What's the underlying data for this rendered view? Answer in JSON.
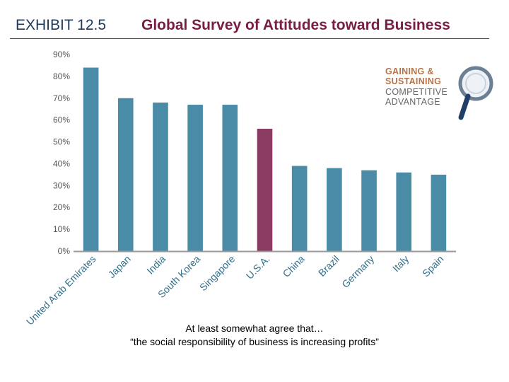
{
  "header": {
    "exhibit": "EXHIBIT 12.5",
    "title": "Global Survey of Attitudes toward Business"
  },
  "badge": {
    "line1": "GAINING &",
    "line2": "SUSTAINING",
    "line3": "COMPETITIVE",
    "line4": "ADVANTAGE",
    "icon": "magnifying-glass-icon"
  },
  "caption": {
    "line1": "At least somewhat agree that…",
    "line2": "“the social responsibility of business is increasing profits”"
  },
  "chart_data": {
    "type": "bar",
    "categories": [
      "United Arab Emirates",
      "Japan",
      "India",
      "South Korea",
      "Singapore",
      "U.S.A.",
      "China",
      "Brazil",
      "Germany",
      "Italy",
      "Spain"
    ],
    "values": [
      84,
      70,
      68,
      67,
      67,
      56,
      39,
      38,
      37,
      36,
      35
    ],
    "highlight_category": "U.S.A.",
    "ylim": [
      0,
      90
    ],
    "yticks": [
      "0%",
      "10%",
      "20%",
      "30%",
      "40%",
      "50%",
      "60%",
      "70%",
      "80%",
      "90%"
    ],
    "colors": {
      "bar": "#4a8ca8",
      "highlight": "#8b3a62",
      "axis": "#999999"
    },
    "grid": false,
    "xlabel": "",
    "ylabel": ""
  }
}
